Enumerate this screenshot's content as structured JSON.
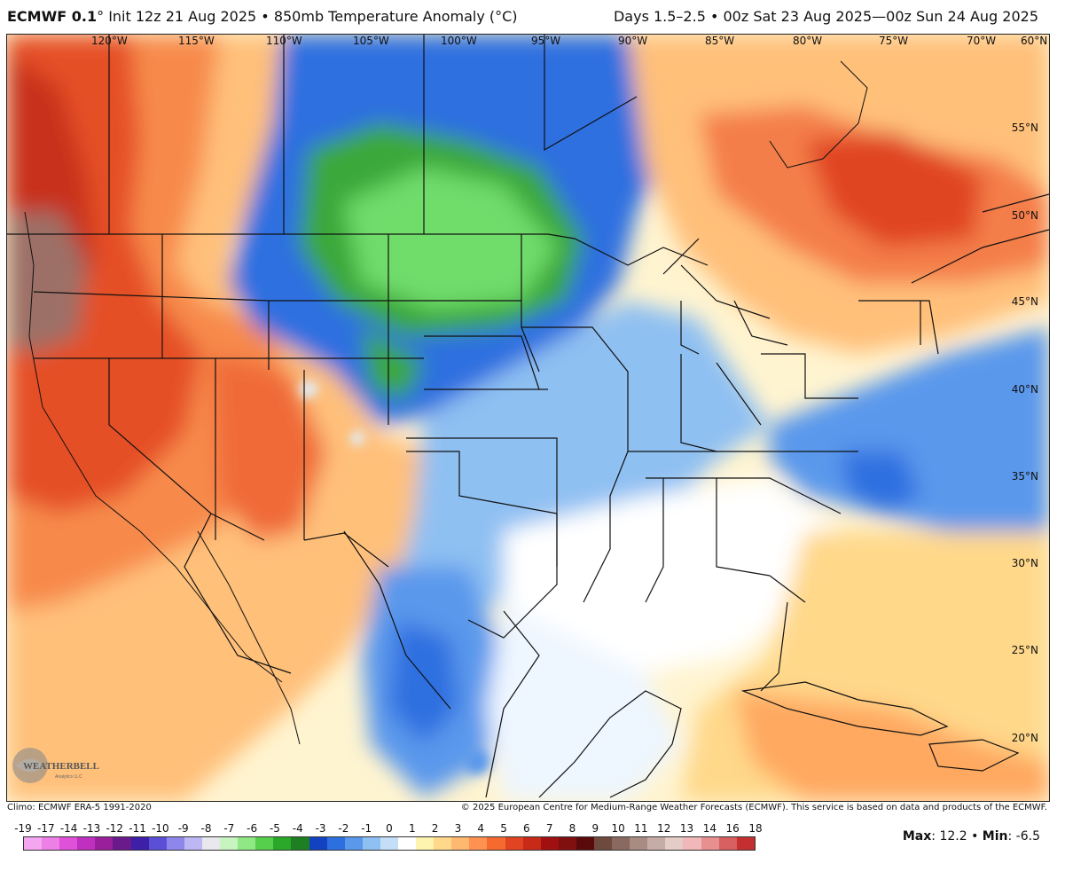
{
  "header": {
    "model": "ECMWF 0.1",
    "model_degree": "°",
    "init": "Init 12z 21 Aug 2025",
    "separator": "•",
    "field": "850mb Temperature Anomaly (°C)",
    "valid": "Days 1.5–2.5 • 00z Sat 23 Aug 2025—00z Sun 24 Aug 2025"
  },
  "map": {
    "lon_labels": [
      "120°W",
      "115°W",
      "110°W",
      "105°W",
      "100°W",
      "95°W",
      "90°W",
      "85°W",
      "80°W",
      "75°W",
      "70°W",
      "60°N"
    ],
    "lat_labels": [
      "55°N",
      "50°N",
      "45°N",
      "40°N",
      "35°N",
      "30°N",
      "25°N",
      "20°N"
    ],
    "logo_text": "WEATHERBELL",
    "logo_subtext": "Analytics LLC"
  },
  "footer": {
    "climo": "Climo: ECMWF ERA-5 1991-2020",
    "copyright": "© 2025 European Centre for Medium-Range Weather Forecasts (ECMWF). This service is based on data and products of the ECMWF."
  },
  "scale": {
    "labels": [
      "-19",
      "-17",
      "-14",
      "-13",
      "-12",
      "-11",
      "-10",
      "-9",
      "-8",
      "-7",
      "-6",
      "-5",
      "-4",
      "-3",
      "-2",
      "-1",
      "0",
      "1",
      "2",
      "3",
      "4",
      "5",
      "6",
      "7",
      "8",
      "9",
      "10",
      "11",
      "12",
      "13",
      "14",
      "16",
      "18"
    ],
    "colors": [
      "#f4a6f0",
      "#ee7fe6",
      "#e050d8",
      "#c030c0",
      "#9a1f9a",
      "#6a1a8a",
      "#3d1fa8",
      "#5a4fd6",
      "#8f86ec",
      "#bdb8f4",
      "#e8e8ee",
      "#c8f4c0",
      "#8fe883",
      "#56cf4d",
      "#2aa82a",
      "#1e7f22",
      "#1242c0",
      "#2e6fe0",
      "#5a98ec",
      "#8fc0f2",
      "#c4def8",
      "#ffffff",
      "#fff3b0",
      "#ffd88a",
      "#ffb870",
      "#ff9250",
      "#f66a30",
      "#e04420",
      "#c82a18",
      "#a01010",
      "#801010",
      "#5a0a0a",
      "#6e4a3e",
      "#8a6a60",
      "#a88c84",
      "#c6aca6",
      "#e4ccc8",
      "#f0b8b8",
      "#e89090",
      "#d86060",
      "#c43030"
    ],
    "max_label": "Max",
    "max_value": "12.2",
    "min_label": "Min",
    "min_value": "-6.5"
  }
}
